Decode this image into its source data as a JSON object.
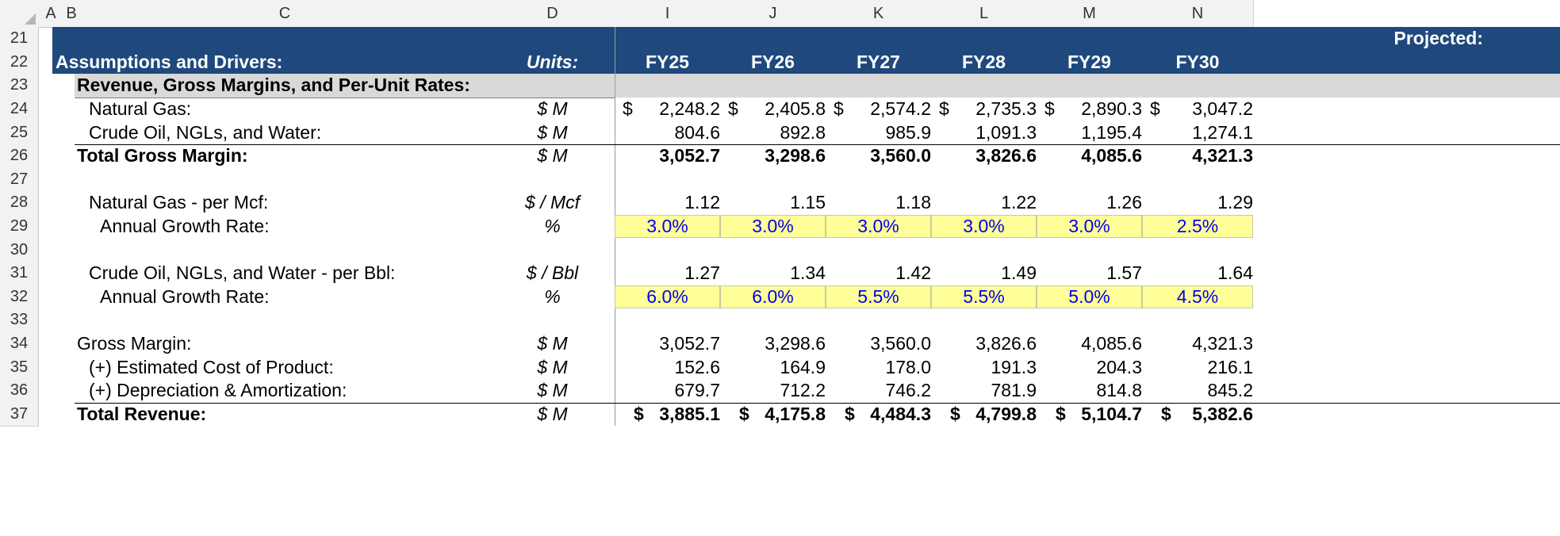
{
  "columns": [
    "A",
    "B",
    "C",
    "D",
    "I",
    "J",
    "K",
    "L",
    "M",
    "N"
  ],
  "rows": [
    "21",
    "22",
    "23",
    "24",
    "25",
    "26",
    "27",
    "28",
    "29",
    "30",
    "31",
    "32",
    "33",
    "34",
    "35",
    "36",
    "37"
  ],
  "header": {
    "projected": "Projected:",
    "title": "Assumptions and Drivers:",
    "units": "Units:",
    "years": [
      "FY25",
      "FY26",
      "FY27",
      "FY28",
      "FY29",
      "FY30"
    ]
  },
  "section": "Revenue, Gross Margins, and Per-Unit Rates:",
  "currency_symbol": "$",
  "lines": [
    {
      "label": "Natural Gas:",
      "unit": "$ M",
      "values": [
        "2,248.2",
        "2,405.8",
        "2,574.2",
        "2,735.3",
        "2,890.3",
        "3,047.2"
      ]
    },
    {
      "label": "Crude Oil, NGLs, and Water:",
      "unit": "$ M",
      "values": [
        "804.6",
        "892.8",
        "985.9",
        "1,091.3",
        "1,195.4",
        "1,274.1"
      ]
    },
    {
      "label": "Total Gross Margin:",
      "unit": "$ M",
      "values": [
        "3,052.7",
        "3,298.6",
        "3,560.0",
        "3,826.6",
        "4,085.6",
        "4,321.3"
      ]
    },
    {
      "label": "Natural Gas - per Mcf:",
      "unit": "$ / Mcf",
      "values": [
        "1.12",
        "1.15",
        "1.18",
        "1.22",
        "1.26",
        "1.29"
      ]
    },
    {
      "label": "Annual Growth Rate:",
      "unit": "%",
      "values": [
        "3.0%",
        "3.0%",
        "3.0%",
        "3.0%",
        "3.0%",
        "2.5%"
      ]
    },
    {
      "label": "Crude Oil, NGLs, and Water - per Bbl:",
      "unit": "$ / Bbl",
      "values": [
        "1.27",
        "1.34",
        "1.42",
        "1.49",
        "1.57",
        "1.64"
      ]
    },
    {
      "label": "Annual Growth Rate:",
      "unit": "%",
      "values": [
        "6.0%",
        "6.0%",
        "5.5%",
        "5.5%",
        "5.0%",
        "4.5%"
      ]
    },
    {
      "label": "Gross Margin:",
      "unit": "$ M",
      "values": [
        "3,052.7",
        "3,298.6",
        "3,560.0",
        "3,826.6",
        "4,085.6",
        "4,321.3"
      ]
    },
    {
      "label": "(+) Estimated Cost of Product:",
      "unit": "$ M",
      "values": [
        "152.6",
        "164.9",
        "178.0",
        "191.3",
        "204.3",
        "216.1"
      ]
    },
    {
      "label": "(+) Depreciation & Amortization:",
      "unit": "$ M",
      "values": [
        "679.7",
        "712.2",
        "746.2",
        "781.9",
        "814.8",
        "845.2"
      ]
    },
    {
      "label": "Total Revenue:",
      "unit": "$ M",
      "values": [
        "3,885.1",
        "4,175.8",
        "4,484.3",
        "4,799.8",
        "5,104.7",
        "5,382.6"
      ]
    }
  ]
}
